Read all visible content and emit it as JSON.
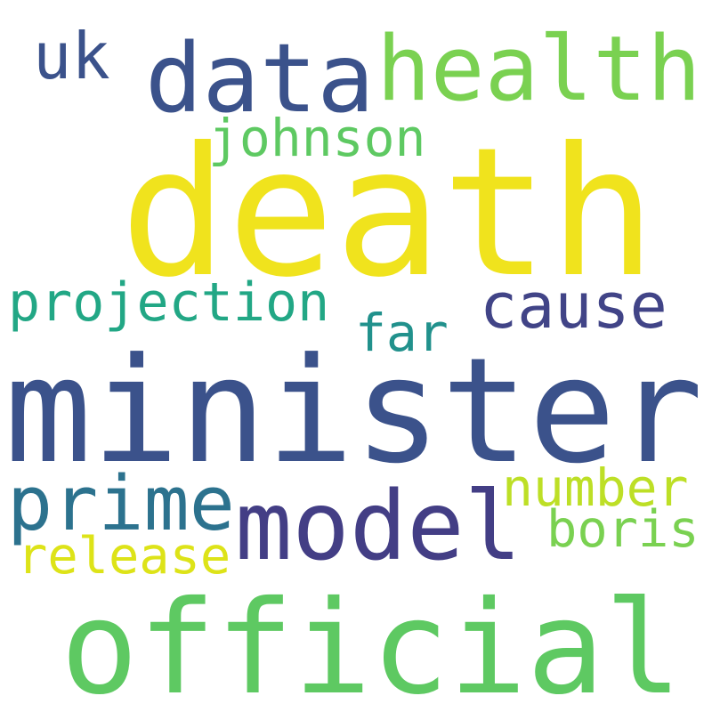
{
  "words": [
    {
      "text": "death",
      "color": "#f0e31d"
    },
    {
      "text": "minister",
      "color": "#3b528b"
    },
    {
      "text": "official",
      "color": "#5ec962"
    },
    {
      "text": "model",
      "color": "#433e85"
    },
    {
      "text": "data",
      "color": "#3b528b"
    },
    {
      "text": "health",
      "color": "#7ad151"
    },
    {
      "text": "prime",
      "color": "#2c728e"
    },
    {
      "text": "cause",
      "color": "#414487"
    },
    {
      "text": "projection",
      "color": "#22a785"
    },
    {
      "text": "johnson",
      "color": "#5ec962"
    },
    {
      "text": "uk",
      "color": "#3b528b"
    },
    {
      "text": "far",
      "color": "#21918c"
    },
    {
      "text": "number",
      "color": "#bddf26"
    },
    {
      "text": "boris",
      "color": "#7ad151"
    },
    {
      "text": "release",
      "color": "#dde318"
    }
  ]
}
